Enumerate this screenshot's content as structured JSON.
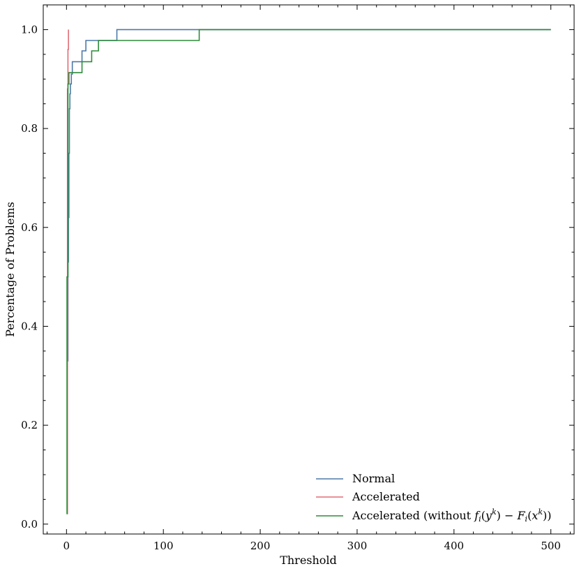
{
  "chart_data": {
    "type": "line",
    "xlabel": "Threshold",
    "ylabel": "Percentage of Problems",
    "xlim": [
      -24,
      524
    ],
    "ylim": [
      -0.02,
      1.05
    ],
    "xticks": [
      0,
      100,
      200,
      300,
      400,
      500
    ],
    "xtick_labels": [
      "0",
      "100",
      "200",
      "300",
      "400",
      "500"
    ],
    "yticks": [
      0.0,
      0.2,
      0.4,
      0.6,
      0.8,
      1.0
    ],
    "ytick_labels": [
      "0.0",
      "0.2",
      "0.4",
      "0.6",
      "0.8",
      "1.0"
    ],
    "grid": false,
    "legend_position": "lower-right",
    "series": [
      {
        "name": "Normal",
        "color": "#4c78a8",
        "x": [
          1,
          1,
          1.5,
          1.5,
          2,
          2,
          2.5,
          2.5,
          3,
          3,
          3.5,
          3.5,
          4,
          4,
          5,
          5,
          6,
          6,
          8,
          8,
          16,
          16,
          20,
          20,
          52,
          52,
          500
        ],
        "y": [
          0.02,
          0.33,
          0.33,
          0.53,
          0.53,
          0.62,
          0.62,
          0.75,
          0.75,
          0.84,
          0.84,
          0.87,
          0.87,
          0.89,
          0.89,
          0.91,
          0.91,
          0.935,
          0.935,
          0.935,
          0.935,
          0.957,
          0.957,
          0.978,
          0.978,
          1.0,
          1.0
        ]
      },
      {
        "name": "Accelerated",
        "color": "#e06c75",
        "x": [
          1,
          1,
          1.5,
          1.5,
          2,
          2
        ],
        "y": [
          0.02,
          0.88,
          0.88,
          0.96,
          0.96,
          1.0
        ]
      },
      {
        "name": "Accelerated (without f_i(y^k) − F_i(x^k))",
        "color": "#2e8b3a",
        "x": [
          0.5,
          0.5,
          1.5,
          1.5,
          2.5,
          2.5,
          16,
          16,
          26,
          26,
          33,
          33,
          137,
          137,
          500
        ],
        "y": [
          0.02,
          0.5,
          0.5,
          0.89,
          0.89,
          0.913,
          0.913,
          0.935,
          0.935,
          0.957,
          0.957,
          0.978,
          0.978,
          1.0,
          1.0
        ]
      }
    ]
  }
}
